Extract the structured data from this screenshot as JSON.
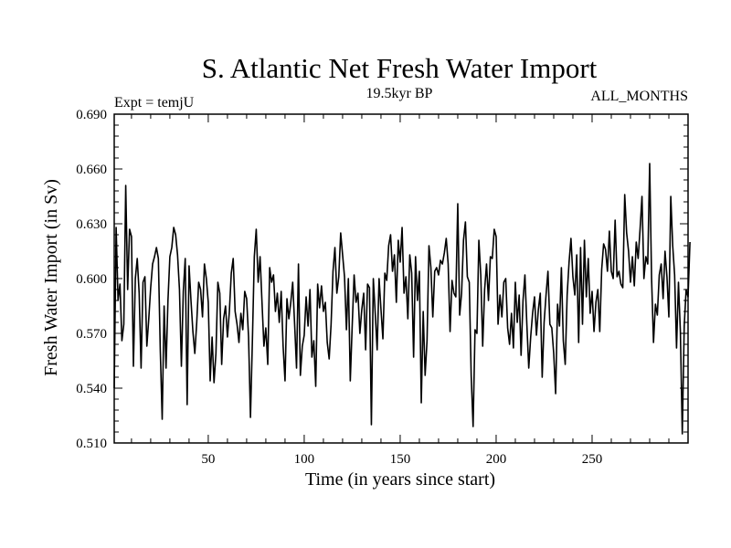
{
  "chart_data": {
    "type": "line",
    "title": "S. Atlantic Net Fresh Water Import",
    "subtitle_left": "Expt = temjU",
    "subtitle_center": "19.5kyr BP",
    "subtitle_right": "ALL_MONTHS",
    "xlabel": "Time (in years since start)",
    "ylabel": "Fresh Water Import (in Sv)",
    "xlim": [
      1,
      300
    ],
    "ylim": [
      0.51,
      0.69
    ],
    "xticks": [
      50,
      100,
      150,
      200,
      250
    ],
    "yticks": [
      0.51,
      0.54,
      0.57,
      0.6,
      0.63,
      0.66,
      0.69
    ],
    "ytick_labels": [
      "0.510",
      "0.540",
      "0.570",
      "0.600",
      "0.630",
      "0.660",
      "0.690"
    ],
    "grid": false,
    "series": [
      {
        "name": "Fresh water import",
        "x_start": 1,
        "x_step": 1,
        "values": [
          0.54,
          0.628,
          0.588,
          0.597,
          0.566,
          0.575,
          0.651,
          0.594,
          0.627,
          0.623,
          0.552,
          0.6,
          0.611,
          0.592,
          0.551,
          0.598,
          0.601,
          0.563,
          0.578,
          0.595,
          0.608,
          0.612,
          0.617,
          0.611,
          0.561,
          0.523,
          0.585,
          0.551,
          0.588,
          0.612,
          0.617,
          0.628,
          0.624,
          0.613,
          0.594,
          0.552,
          0.593,
          0.611,
          0.531,
          0.607,
          0.588,
          0.571,
          0.559,
          0.576,
          0.598,
          0.594,
          0.579,
          0.608,
          0.6,
          0.587,
          0.544,
          0.568,
          0.543,
          0.559,
          0.598,
          0.592,
          0.553,
          0.578,
          0.585,
          0.568,
          0.582,
          0.603,
          0.611,
          0.582,
          0.575,
          0.565,
          0.581,
          0.572,
          0.593,
          0.589,
          0.568,
          0.524,
          0.566,
          0.612,
          0.627,
          0.598,
          0.612,
          0.587,
          0.563,
          0.573,
          0.553,
          0.606,
          0.598,
          0.602,
          0.582,
          0.592,
          0.576,
          0.593,
          0.563,
          0.544,
          0.589,
          0.578,
          0.587,
          0.598,
          0.575,
          0.551,
          0.608,
          0.547,
          0.563,
          0.569,
          0.59,
          0.574,
          0.594,
          0.557,
          0.566,
          0.541,
          0.597,
          0.584,
          0.596,
          0.582,
          0.587,
          0.565,
          0.556,
          0.575,
          0.604,
          0.617,
          0.592,
          0.601,
          0.625,
          0.613,
          0.601,
          0.572,
          0.6,
          0.544,
          0.574,
          0.602,
          0.587,
          0.592,
          0.57,
          0.583,
          0.592,
          0.561,
          0.597,
          0.595,
          0.52,
          0.6,
          0.581,
          0.561,
          0.6,
          0.583,
          0.567,
          0.603,
          0.599,
          0.618,
          0.624,
          0.604,
          0.613,
          0.587,
          0.621,
          0.609,
          0.628,
          0.592,
          0.601,
          0.578,
          0.613,
          0.603,
          0.557,
          0.612,
          0.588,
          0.604,
          0.532,
          0.582,
          0.547,
          0.566,
          0.618,
          0.606,
          0.579,
          0.604,
          0.606,
          0.602,
          0.61,
          0.608,
          0.614,
          0.622,
          0.608,
          0.571,
          0.599,
          0.592,
          0.59,
          0.641,
          0.58,
          0.592,
          0.621,
          0.631,
          0.601,
          0.598,
          0.547,
          0.519,
          0.572,
          0.57,
          0.621,
          0.602,
          0.563,
          0.594,
          0.608,
          0.588,
          0.612,
          0.611,
          0.627,
          0.623,
          0.575,
          0.591,
          0.579,
          0.598,
          0.6,
          0.573,
          0.564,
          0.581,
          0.562,
          0.598,
          0.576,
          0.591,
          0.558,
          0.588,
          0.602,
          0.575,
          0.551,
          0.568,
          0.581,
          0.59,
          0.569,
          0.583,
          0.592,
          0.546,
          0.576,
          0.591,
          0.604,
          0.575,
          0.573,
          0.559,
          0.537,
          0.586,
          0.574,
          0.606,
          0.566,
          0.553,
          0.591,
          0.609,
          0.622,
          0.601,
          0.591,
          0.613,
          0.565,
          0.617,
          0.575,
          0.621,
          0.59,
          0.611,
          0.581,
          0.593,
          0.571,
          0.587,
          0.594,
          0.571,
          0.605,
          0.619,
          0.616,
          0.604,
          0.626,
          0.604,
          0.6,
          0.632,
          0.601,
          0.604,
          0.597,
          0.595,
          0.646,
          0.625,
          0.615,
          0.598,
          0.612,
          0.596,
          0.62,
          0.611,
          0.627,
          0.645,
          0.6,
          0.612,
          0.608,
          0.663,
          0.6,
          0.565,
          0.586,
          0.58,
          0.602,
          0.608,
          0.589,
          0.615,
          0.601,
          0.579,
          0.645,
          0.618,
          0.602,
          0.562,
          0.598,
          0.571,
          0.515,
          0.574,
          0.594,
          0.59,
          0.62
        ]
      }
    ]
  }
}
